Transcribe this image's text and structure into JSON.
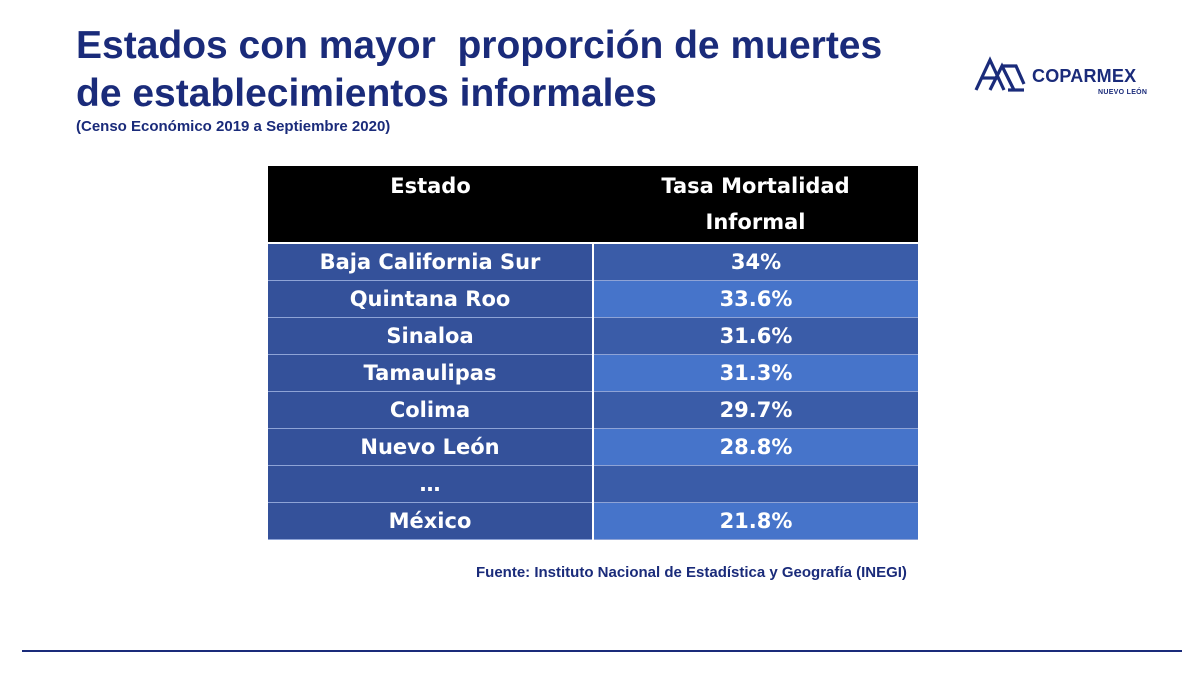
{
  "title": {
    "line1": "Estados con mayor  proporción de muertes",
    "line2": "de establecimientos informales"
  },
  "subtitle": "(Censo Económico 2019 a Septiembre 2020)",
  "logo": {
    "name": "COPARMEX",
    "sub": "NUEVO LEÓN",
    "color": "#1a2b7a"
  },
  "table": {
    "headers": [
      "Estado",
      "Tasa Mortalidad",
      "Informal"
    ],
    "rows": [
      {
        "estado": "Baja California Sur",
        "tasa": "34%"
      },
      {
        "estado": "Quintana Roo",
        "tasa": "33.6%"
      },
      {
        "estado": "Sinaloa",
        "tasa": "31.6%"
      },
      {
        "estado": "Tamaulipas",
        "tasa": "31.3%"
      },
      {
        "estado": "Colima",
        "tasa": "29.7%"
      },
      {
        "estado": "Nuevo León",
        "tasa": "28.8%"
      },
      {
        "estado": "…",
        "tasa": ""
      },
      {
        "estado": "México",
        "tasa": "21.8%"
      }
    ],
    "colors": {
      "header_bg": "#000000",
      "col1_bg": "#34519a",
      "col2_bg_dark": "#3a5ca8",
      "col2_bg_light": "#4674ca"
    }
  },
  "source": "Fuente: Instituto Nacional de Estadística y Geografía (INEGI)"
}
